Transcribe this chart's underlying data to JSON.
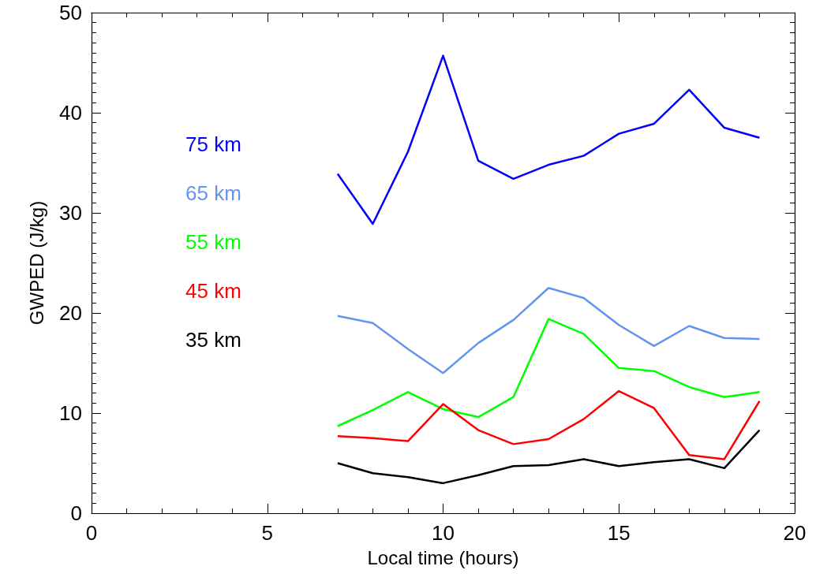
{
  "chart_data": {
    "type": "line",
    "xlabel": "Local time (hours)",
    "ylabel": "GWPED (J/kg)",
    "x": [
      7,
      8,
      9,
      10,
      11,
      12,
      13,
      14,
      15,
      16,
      17,
      18,
      19
    ],
    "series": [
      {
        "name": "75 km",
        "color": "#0000ff",
        "values": [
          33.9,
          28.9,
          36.1,
          45.7,
          35.2,
          33.4,
          34.8,
          35.7,
          37.9,
          38.9,
          42.3,
          38.5,
          37.5
        ]
      },
      {
        "name": "65 km",
        "color": "#6495ed",
        "values": [
          19.7,
          19.0,
          16.4,
          14.0,
          17.0,
          19.3,
          22.5,
          21.5,
          18.8,
          16.7,
          18.7,
          17.5,
          17.4
        ]
      },
      {
        "name": "55 km",
        "color": "#00ff00",
        "values": [
          8.7,
          10.3,
          12.1,
          10.4,
          9.6,
          11.6,
          19.4,
          17.9,
          14.5,
          14.2,
          12.6,
          11.6,
          12.1
        ]
      },
      {
        "name": "45 km",
        "color": "#ff0000",
        "values": [
          7.7,
          7.5,
          7.2,
          10.9,
          8.3,
          6.9,
          7.4,
          9.4,
          12.2,
          10.5,
          5.8,
          5.4,
          11.2
        ]
      },
      {
        "name": "35 km",
        "color": "#000000",
        "values": [
          5.0,
          4.0,
          3.6,
          3.0,
          3.8,
          4.7,
          4.8,
          5.4,
          4.7,
          5.1,
          5.4,
          4.5,
          8.3
        ]
      }
    ],
    "xlim": [
      0,
      20
    ],
    "xticks": [
      0,
      5,
      10,
      15,
      20
    ],
    "ylim": [
      0,
      50
    ],
    "yticks": [
      0,
      10,
      20,
      30,
      40,
      50
    ],
    "grid": false,
    "legend": "left",
    "marker": "none",
    "line_style": "solid"
  }
}
